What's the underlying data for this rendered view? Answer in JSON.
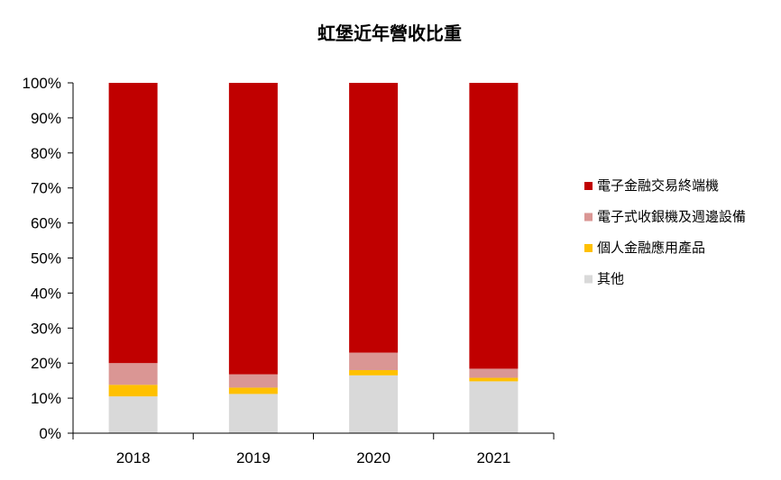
{
  "chart_data": {
    "type": "bar",
    "stacked": true,
    "title": "虹堡近年營收比重",
    "xlabel": "",
    "ylabel": "",
    "categories": [
      "2018",
      "2019",
      "2020",
      "2021"
    ],
    "ylim": [
      0,
      100
    ],
    "yticks": [
      "0%",
      "10%",
      "20%",
      "30%",
      "40%",
      "50%",
      "60%",
      "70%",
      "80%",
      "90%",
      "100%"
    ],
    "grid": false,
    "legend_position": "right",
    "series": [
      {
        "name": "其他",
        "color": "#d9d9d9",
        "values": [
          10.5,
          11.2,
          16.5,
          14.8
        ]
      },
      {
        "name": "個人金融應用產品",
        "color": "#ffc000",
        "values": [
          3.3,
          1.8,
          1.5,
          1.0
        ]
      },
      {
        "name": "電子式收銀機及週邊設備",
        "color": "#da9694",
        "values": [
          6.2,
          3.8,
          5.0,
          2.6
        ]
      },
      {
        "name": "電子金融交易終端機",
        "color": "#c00000",
        "values": [
          80.0,
          83.2,
          77.0,
          81.6
        ]
      }
    ],
    "legend_order": [
      3,
      2,
      1,
      0
    ]
  }
}
